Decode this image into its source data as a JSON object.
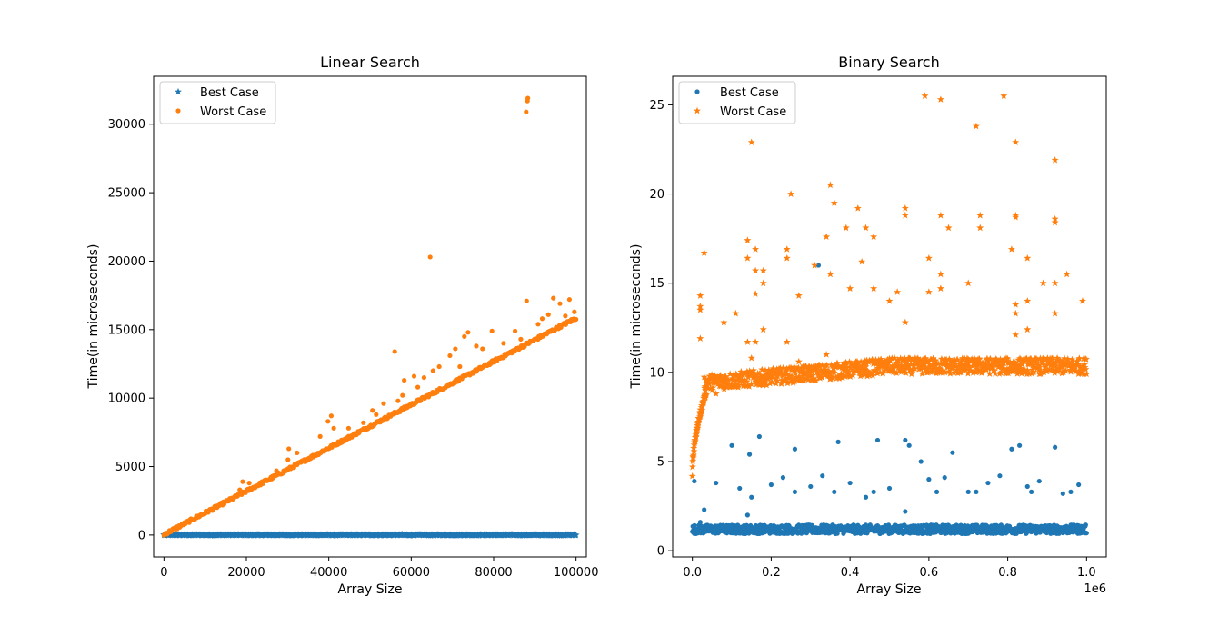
{
  "chart_data": [
    {
      "type": "scatter",
      "title": "Linear Search",
      "xlabel": "Array Size",
      "ylabel": "Time(in microseconds)",
      "xlim": [
        -2500,
        102500
      ],
      "ylim": [
        -1600,
        33500
      ],
      "xticks": [
        0,
        20000,
        40000,
        60000,
        80000,
        100000
      ],
      "xtick_labels": [
        "0",
        "20000",
        "40000",
        "60000",
        "80000",
        "100000"
      ],
      "yticks": [
        0,
        5000,
        10000,
        15000,
        20000,
        25000,
        30000
      ],
      "ytick_labels": [
        "0",
        "5000",
        "10000",
        "15000",
        "20000",
        "25000",
        "30000"
      ],
      "x_offset_label": "",
      "grid": false,
      "legend": "upper-left",
      "series": [
        {
          "name": "Best Case",
          "marker": "star",
          "color": "#1f77b4",
          "trend": {
            "x_start": 0,
            "x_end": 100000,
            "y_start": 0,
            "y_end": 0
          },
          "outliers": [
            [
              57800,
              50
            ],
            [
              0,
              20
            ]
          ]
        },
        {
          "name": "Worst Case",
          "marker": "dot",
          "color": "#ff7f0e",
          "trend": {
            "x_start": 0,
            "x_end": 100000,
            "y_start": 0,
            "y_end": 15800
          },
          "outliers": [
            [
              88300,
              31900
            ],
            [
              88200,
              31700
            ],
            [
              87900,
              30900
            ],
            [
              64600,
              20300
            ],
            [
              88000,
              17100
            ],
            [
              94500,
              17300
            ],
            [
              98400,
              17200
            ],
            [
              96100,
              16900
            ],
            [
              93300,
              16100
            ],
            [
              91800,
              15800
            ],
            [
              56000,
              13400
            ],
            [
              72900,
              14500
            ],
            [
              73800,
              14800
            ],
            [
              75800,
              13800
            ],
            [
              79600,
              14900
            ],
            [
              70700,
              13600
            ],
            [
              69400,
              13100
            ],
            [
              66800,
              12300
            ],
            [
              65300,
              12000
            ],
            [
              63100,
              11500
            ],
            [
              58300,
              11300
            ],
            [
              60700,
              11600
            ],
            [
              57900,
              10200
            ],
            [
              56800,
              9800
            ],
            [
              50600,
              9100
            ],
            [
              51500,
              8800
            ],
            [
              40600,
              8700
            ],
            [
              39800,
              8300
            ],
            [
              41200,
              7800
            ],
            [
              37900,
              7200
            ],
            [
              32300,
              6000
            ],
            [
              30300,
              6300
            ],
            [
              30100,
              5500
            ],
            [
              19100,
              3900
            ],
            [
              18400,
              3300
            ],
            [
              20700,
              3800
            ],
            [
              23800,
              3900
            ],
            [
              27300,
              4700
            ],
            [
              44800,
              7800
            ],
            [
              48400,
              8200
            ],
            [
              53300,
              9600
            ],
            [
              61600,
              10800
            ],
            [
              71800,
              12300
            ],
            [
              77300,
              13600
            ],
            [
              82400,
              14000
            ],
            [
              85200,
              14900
            ],
            [
              86600,
              14300
            ],
            [
              90800,
              15400
            ],
            [
              97400,
              16000
            ],
            [
              99600,
              16300
            ]
          ]
        }
      ]
    },
    {
      "type": "scatter",
      "title": "Binary Search",
      "xlabel": "Array Size",
      "ylabel": "Time(in microseconds)",
      "xlim": [
        -0.05,
        1.05
      ],
      "ylim": [
        -0.35,
        26.6
      ],
      "xticks": [
        0,
        0.2,
        0.4,
        0.6,
        0.8,
        1.0
      ],
      "xtick_labels": [
        "0.0",
        "0.2",
        "0.4",
        "0.6",
        "0.8",
        "1.0"
      ],
      "yticks": [
        0,
        5,
        10,
        15,
        20,
        25
      ],
      "ytick_labels": [
        "0",
        "5",
        "10",
        "15",
        "20",
        "25"
      ],
      "x_offset_label": "1e6",
      "grid": false,
      "legend": "upper-left",
      "series": [
        {
          "name": "Best Case",
          "marker": "dot",
          "color": "#1f77b4",
          "band": {
            "x_start": 0,
            "x_end": 1.0,
            "y_min": 0.95,
            "y_max": 1.45
          },
          "outliers": [
            [
              0.17,
              6.4
            ],
            [
              0.1,
              5.9
            ],
            [
              0.145,
              5.4
            ],
            [
              0.26,
              5.7
            ],
            [
              0.37,
              6.1
            ],
            [
              0.47,
              6.2
            ],
            [
              0.54,
              6.2
            ],
            [
              0.55,
              5.9
            ],
            [
              0.58,
              5.0
            ],
            [
              0.66,
              5.5
            ],
            [
              0.81,
              5.7
            ],
            [
              0.83,
              5.9
            ],
            [
              0.92,
              5.8
            ],
            [
              0.06,
              3.8
            ],
            [
              0.12,
              3.5
            ],
            [
              0.15,
              3.0
            ],
            [
              0.2,
              3.7
            ],
            [
              0.23,
              4.1
            ],
            [
              0.3,
              3.6
            ],
            [
              0.33,
              4.2
            ],
            [
              0.4,
              3.8
            ],
            [
              0.44,
              3.0
            ],
            [
              0.5,
              3.5
            ],
            [
              0.6,
              4.0
            ],
            [
              0.64,
              4.1
            ],
            [
              0.7,
              3.3
            ],
            [
              0.75,
              3.8
            ],
            [
              0.78,
              4.2
            ],
            [
              0.85,
              3.6
            ],
            [
              0.88,
              3.9
            ],
            [
              0.94,
              3.2
            ],
            [
              0.98,
              3.7
            ],
            [
              0.32,
              16.0
            ],
            [
              0.14,
              2.0
            ],
            [
              0.54,
              2.2
            ],
            [
              0.02,
              1.6
            ],
            [
              0.03,
              2.3
            ],
            [
              0.005,
              3.9
            ],
            [
              0.26,
              3.3
            ],
            [
              0.46,
              3.3
            ],
            [
              0.62,
              3.3
            ],
            [
              0.86,
              3.3
            ],
            [
              0.96,
              3.3
            ],
            [
              0.36,
              3.3
            ],
            [
              0.72,
              3.3
            ]
          ]
        },
        {
          "name": "Worst Case",
          "marker": "star",
          "color": "#ff7f0e",
          "band": {
            "x_start": 0.03,
            "x_end": 1.0,
            "y_min": 9.0,
            "y_max": 11.0
          },
          "curve_start": [
            0.0,
            4.2
          ],
          "outliers": [
            [
              0.15,
              22.9
            ],
            [
              0.59,
              25.5
            ],
            [
              0.63,
              25.3
            ],
            [
              0.79,
              25.5
            ],
            [
              0.72,
              23.8
            ],
            [
              0.82,
              22.9
            ],
            [
              0.92,
              21.9
            ],
            [
              0.35,
              20.5
            ],
            [
              0.25,
              20.0
            ],
            [
              0.36,
              19.5
            ],
            [
              0.42,
              19.2
            ],
            [
              0.54,
              19.2
            ],
            [
              0.54,
              18.8
            ],
            [
              0.63,
              18.8
            ],
            [
              0.73,
              18.8
            ],
            [
              0.82,
              18.8
            ],
            [
              0.92,
              18.6
            ],
            [
              0.92,
              18.4
            ],
            [
              0.39,
              18.1
            ],
            [
              0.44,
              18.1
            ],
            [
              0.65,
              18.1
            ],
            [
              0.73,
              18.1
            ],
            [
              0.82,
              18.7
            ],
            [
              0.14,
              17.4
            ],
            [
              0.34,
              17.6
            ],
            [
              0.46,
              17.6
            ],
            [
              0.24,
              16.9
            ],
            [
              0.16,
              16.9
            ],
            [
              0.81,
              16.9
            ],
            [
              0.03,
              16.7
            ],
            [
              0.14,
              16.4
            ],
            [
              0.43,
              16.2
            ],
            [
              0.6,
              16.4
            ],
            [
              0.85,
              16.4
            ],
            [
              0.24,
              16.4
            ],
            [
              0.16,
              15.7
            ],
            [
              0.18,
              15.7
            ],
            [
              0.31,
              16.0
            ],
            [
              0.35,
              15.5
            ],
            [
              0.63,
              15.5
            ],
            [
              0.89,
              15.0
            ],
            [
              0.7,
              15.0
            ],
            [
              0.92,
              15.0
            ],
            [
              0.95,
              15.5
            ],
            [
              0.18,
              15.0
            ],
            [
              0.27,
              14.3
            ],
            [
              0.4,
              14.7
            ],
            [
              0.46,
              14.7
            ],
            [
              0.6,
              14.5
            ],
            [
              0.63,
              14.7
            ],
            [
              0.52,
              14.5
            ],
            [
              0.16,
              14.4
            ],
            [
              0.02,
              14.3
            ],
            [
              0.02,
              13.7
            ],
            [
              0.02,
              13.5
            ],
            [
              0.08,
              12.8
            ],
            [
              0.11,
              13.3
            ],
            [
              0.18,
              12.4
            ],
            [
              0.5,
              14.0
            ],
            [
              0.54,
              12.8
            ],
            [
              0.82,
              13.3
            ],
            [
              0.82,
              13.8
            ],
            [
              0.85,
              12.4
            ],
            [
              0.85,
              14.0
            ],
            [
              0.92,
              13.3
            ],
            [
              0.99,
              14.0
            ],
            [
              0.02,
              11.9
            ],
            [
              0.14,
              11.7
            ],
            [
              0.16,
              11.7
            ],
            [
              0.24,
              11.7
            ],
            [
              0.34,
              11.0
            ],
            [
              0.82,
              12.1
            ],
            [
              0.06,
              8.8
            ],
            [
              0.15,
              10.8
            ],
            [
              0.27,
              10.6
            ]
          ]
        }
      ]
    }
  ]
}
